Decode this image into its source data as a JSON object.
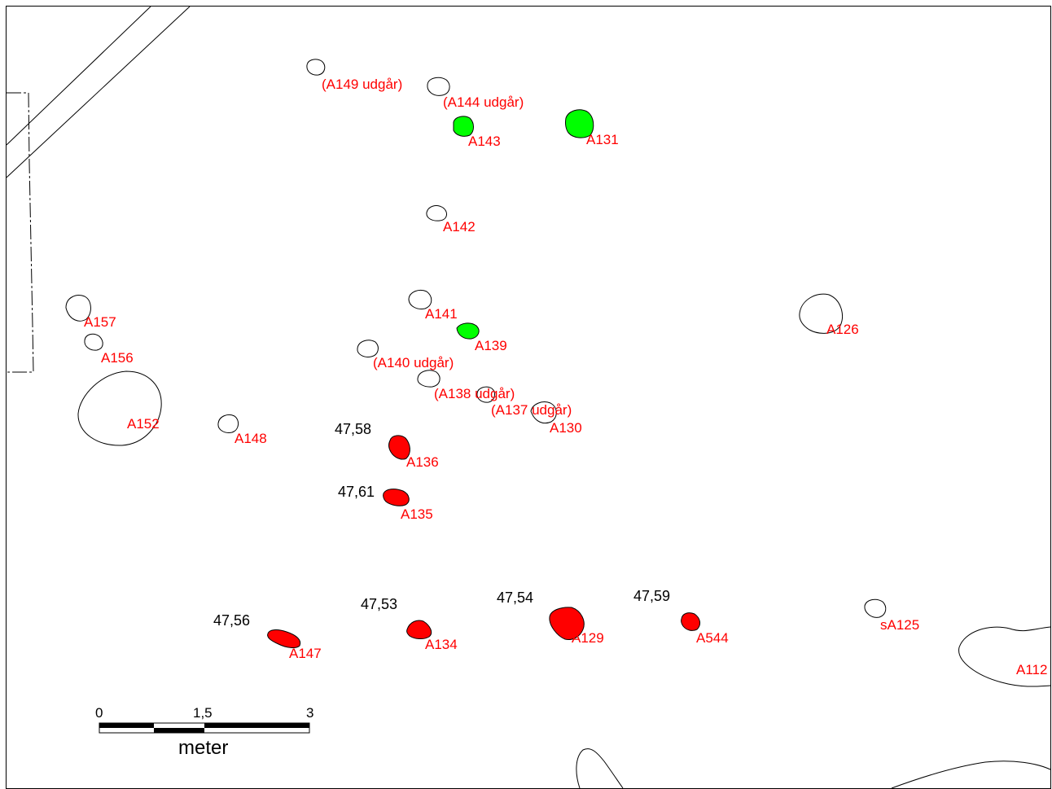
{
  "colors": {
    "label": "#ff0000",
    "feature_red": "#ff0000",
    "feature_green": "#00ff00",
    "outline": "#000000"
  },
  "features": [
    {
      "id": "a149",
      "label": "(A149 udgår)",
      "fill": "none"
    },
    {
      "id": "a144",
      "label": "(A144 udgår)",
      "fill": "none"
    },
    {
      "id": "a143",
      "label": "A143",
      "fill": "green"
    },
    {
      "id": "a131",
      "label": "A131",
      "fill": "green"
    },
    {
      "id": "a142",
      "label": "A142",
      "fill": "none"
    },
    {
      "id": "a157",
      "label": "A157",
      "fill": "none"
    },
    {
      "id": "a156",
      "label": "A156",
      "fill": "none"
    },
    {
      "id": "a141",
      "label": "A141",
      "fill": "none"
    },
    {
      "id": "a139",
      "label": "A139",
      "fill": "green"
    },
    {
      "id": "a126",
      "label": "A126",
      "fill": "none"
    },
    {
      "id": "a140",
      "label": "(A140 udgår)",
      "fill": "none"
    },
    {
      "id": "a138",
      "label": "(A138 udgår)",
      "fill": "none"
    },
    {
      "id": "a137",
      "label": "(A137 udgår)",
      "fill": "none"
    },
    {
      "id": "a130",
      "label": "A130",
      "fill": "none"
    },
    {
      "id": "a152",
      "label": "A152",
      "fill": "none"
    },
    {
      "id": "a148",
      "label": "A148",
      "fill": "none"
    },
    {
      "id": "a136",
      "label": "A136",
      "fill": "red",
      "elevation": "47,58"
    },
    {
      "id": "a135",
      "label": "A135",
      "fill": "red",
      "elevation": "47,61"
    },
    {
      "id": "a147",
      "label": "A147",
      "fill": "red",
      "elevation": "47,56"
    },
    {
      "id": "a134",
      "label": "A134",
      "fill": "red",
      "elevation": "47,53"
    },
    {
      "id": "a129",
      "label": "A129",
      "fill": "red",
      "elevation": "47,54"
    },
    {
      "id": "a544",
      "label": "A544",
      "fill": "red",
      "elevation": "47,59"
    },
    {
      "id": "sa125",
      "label": "sA125",
      "fill": "none"
    },
    {
      "id": "a112",
      "label": "A112",
      "fill": "none"
    }
  ],
  "scale_bar": {
    "ticks": [
      "0",
      "1,5",
      "3"
    ],
    "unit": "meter"
  }
}
